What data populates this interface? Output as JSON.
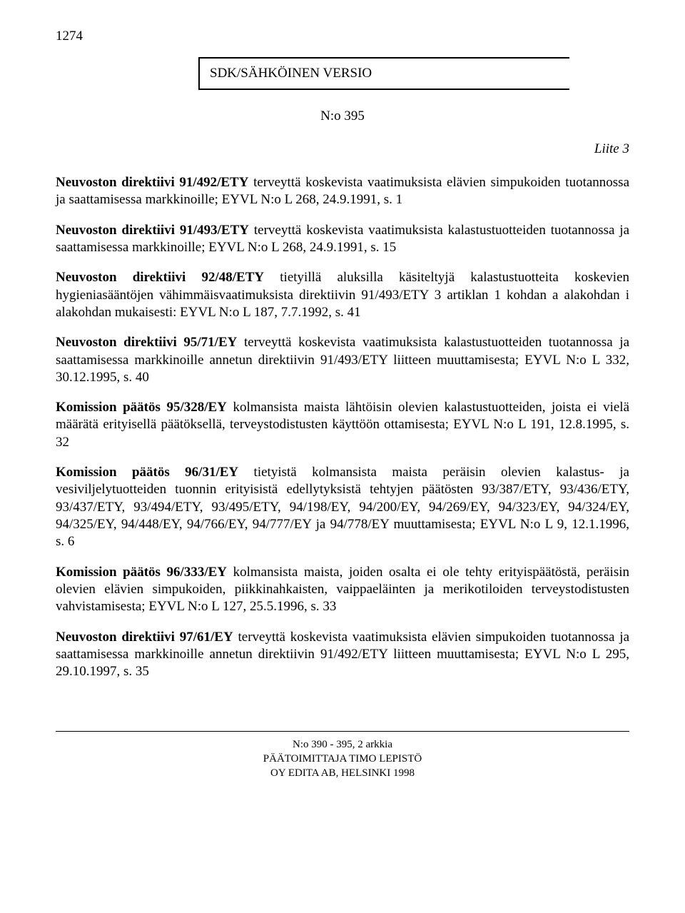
{
  "pageNumber": "1274",
  "boxedText": "SDK/SÄHKÖINEN VERSIO",
  "docNo": "N:o 395",
  "attachment": "Liite 3",
  "paragraphs": [
    {
      "bold": "Neuvoston direktiivi 91/492/ETY",
      "rest": " terveyttä koskevista vaatimuksista elävien simpukoiden tuotannossa ja saattamisessa markkinoille; EYVL N:o L 268, 24.9.1991, s. 1"
    },
    {
      "bold": "Neuvoston direktiivi 91/493/ETY",
      "rest": " terveyttä koskevista vaatimuksista kalastustuotteiden tuotannossa ja saattamisessa markkinoille; EYVL N:o L 268, 24.9.1991, s. 15"
    },
    {
      "bold": "Neuvoston direktiivi 92/48/ETY",
      "rest": " tietyillä aluksilla käsiteltyjä kalastustuotteita koskevien hygieniasääntöjen vähimmäisvaatimuksista direktiivin 91/493/ETY 3 artiklan 1 kohdan a alakohdan i alakohdan mukaisesti: EYVL N:o L 187, 7.7.1992, s. 41"
    },
    {
      "bold": "Neuvoston direktiivi 95/71/EY",
      "rest": " terveyttä koskevista vaatimuksista kalastustuotteiden tuotannossa ja saattamisessa markkinoille annetun direktiivin 91/493/ETY liitteen muuttamisesta; EYVL N:o L 332, 30.12.1995, s. 40"
    },
    {
      "bold": "Komission päätös 95/328/EY",
      "rest": " kolmansista maista lähtöisin olevien kalastustuotteiden, joista ei vielä määrätä erityisellä päätöksellä, terveystodistusten käyttöön ottamisesta; EYVL N:o L 191, 12.8.1995, s. 32"
    },
    {
      "bold": "Komission päätös 96/31/EY",
      "rest": " tietyistä kolmansista maista peräisin olevien kalastus- ja vesiviljelytuotteiden tuonnin erityisistä edellytyksistä tehtyjen päätösten 93/387/ETY, 93/436/ETY, 93/437/ETY, 93/494/ETY, 93/495/ETY, 94/198/EY, 94/200/EY, 94/269/EY, 94/323/EY, 94/324/EY, 94/325/EY, 94/448/EY, 94/766/EY, 94/777/EY ja 94/778/EY muuttamisesta; EYVL N:o L 9, 12.1.1996, s. 6"
    },
    {
      "bold": "Komission päätös 96/333/EY",
      "rest": " kolmansista maista, joiden osalta ei ole tehty erityispäätöstä, peräisin olevien elävien simpukoiden, piikkinahkaisten, vaippaeläinten ja merikotiloiden terveystodistusten vahvistamisesta; EYVL N:o L 127, 25.5.1996, s. 33"
    },
    {
      "bold": "Neuvoston direktiivi 97/61/EY",
      "rest": " terveyttä koskevista vaatimuksista elävien simpukoiden tuotannossa ja saattamisessa markkinoille annetun direktiivin 91/492/ETY liitteen muuttamisesta; EYVL N:o L 295, 29.10.1997, s. 35"
    }
  ],
  "footer": {
    "line1": "N:o 390 - 395, 2 arkkia",
    "line2": "PÄÄTOIMITTAJA TIMO LEPISTÖ",
    "line3": "OY EDITA AB, HELSINKI 1998"
  }
}
